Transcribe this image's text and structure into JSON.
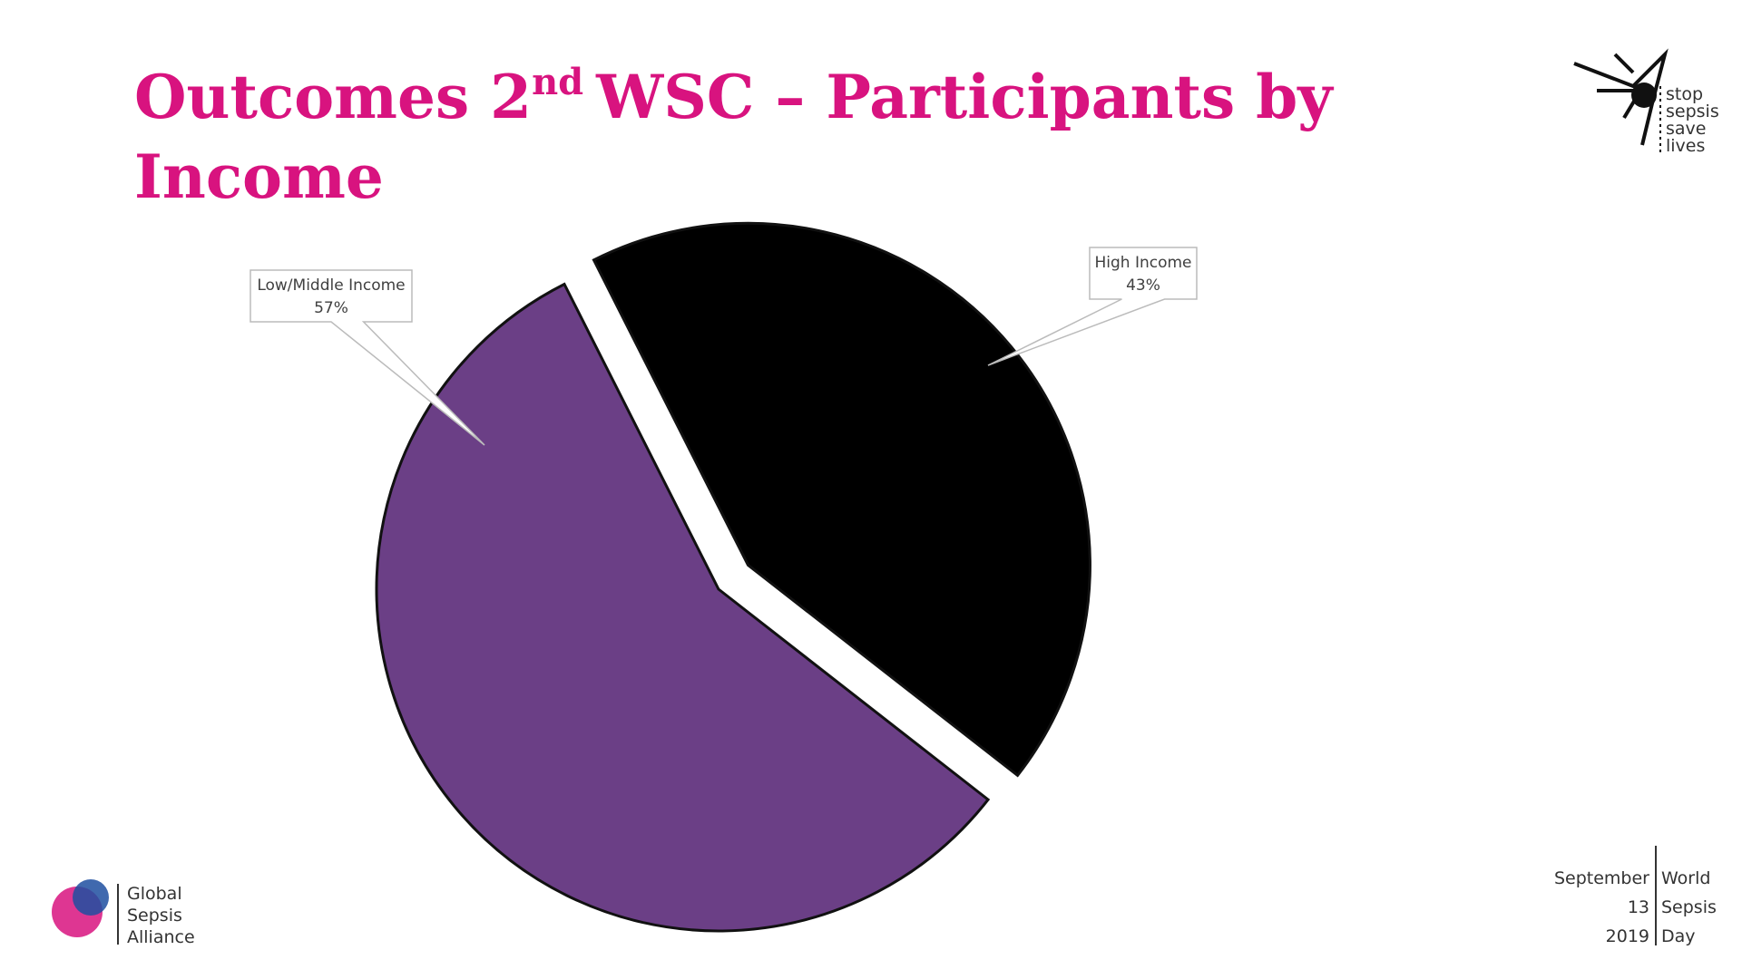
{
  "chart_data": {
    "type": "pie",
    "title": {
      "main": "Outcomes 2",
      "sup": "nd",
      "rest": "WSC – Participants by",
      "line2": "Income"
    },
    "categories": [
      "Low/Middle Income",
      "High Income"
    ],
    "values": [
      57,
      43
    ],
    "value_labels": [
      "57%",
      "43%"
    ],
    "colors": [
      "#6b3f86",
      "#000000"
    ]
  },
  "branding": {
    "stop_sepsis": [
      "stop",
      "sepsis",
      "save",
      "lives"
    ],
    "alliance": [
      "Global",
      "Sepsis",
      "Alliance"
    ],
    "date": [
      "September",
      "13",
      "2019"
    ],
    "day": [
      "World",
      "Sepsis",
      "Day"
    ]
  }
}
